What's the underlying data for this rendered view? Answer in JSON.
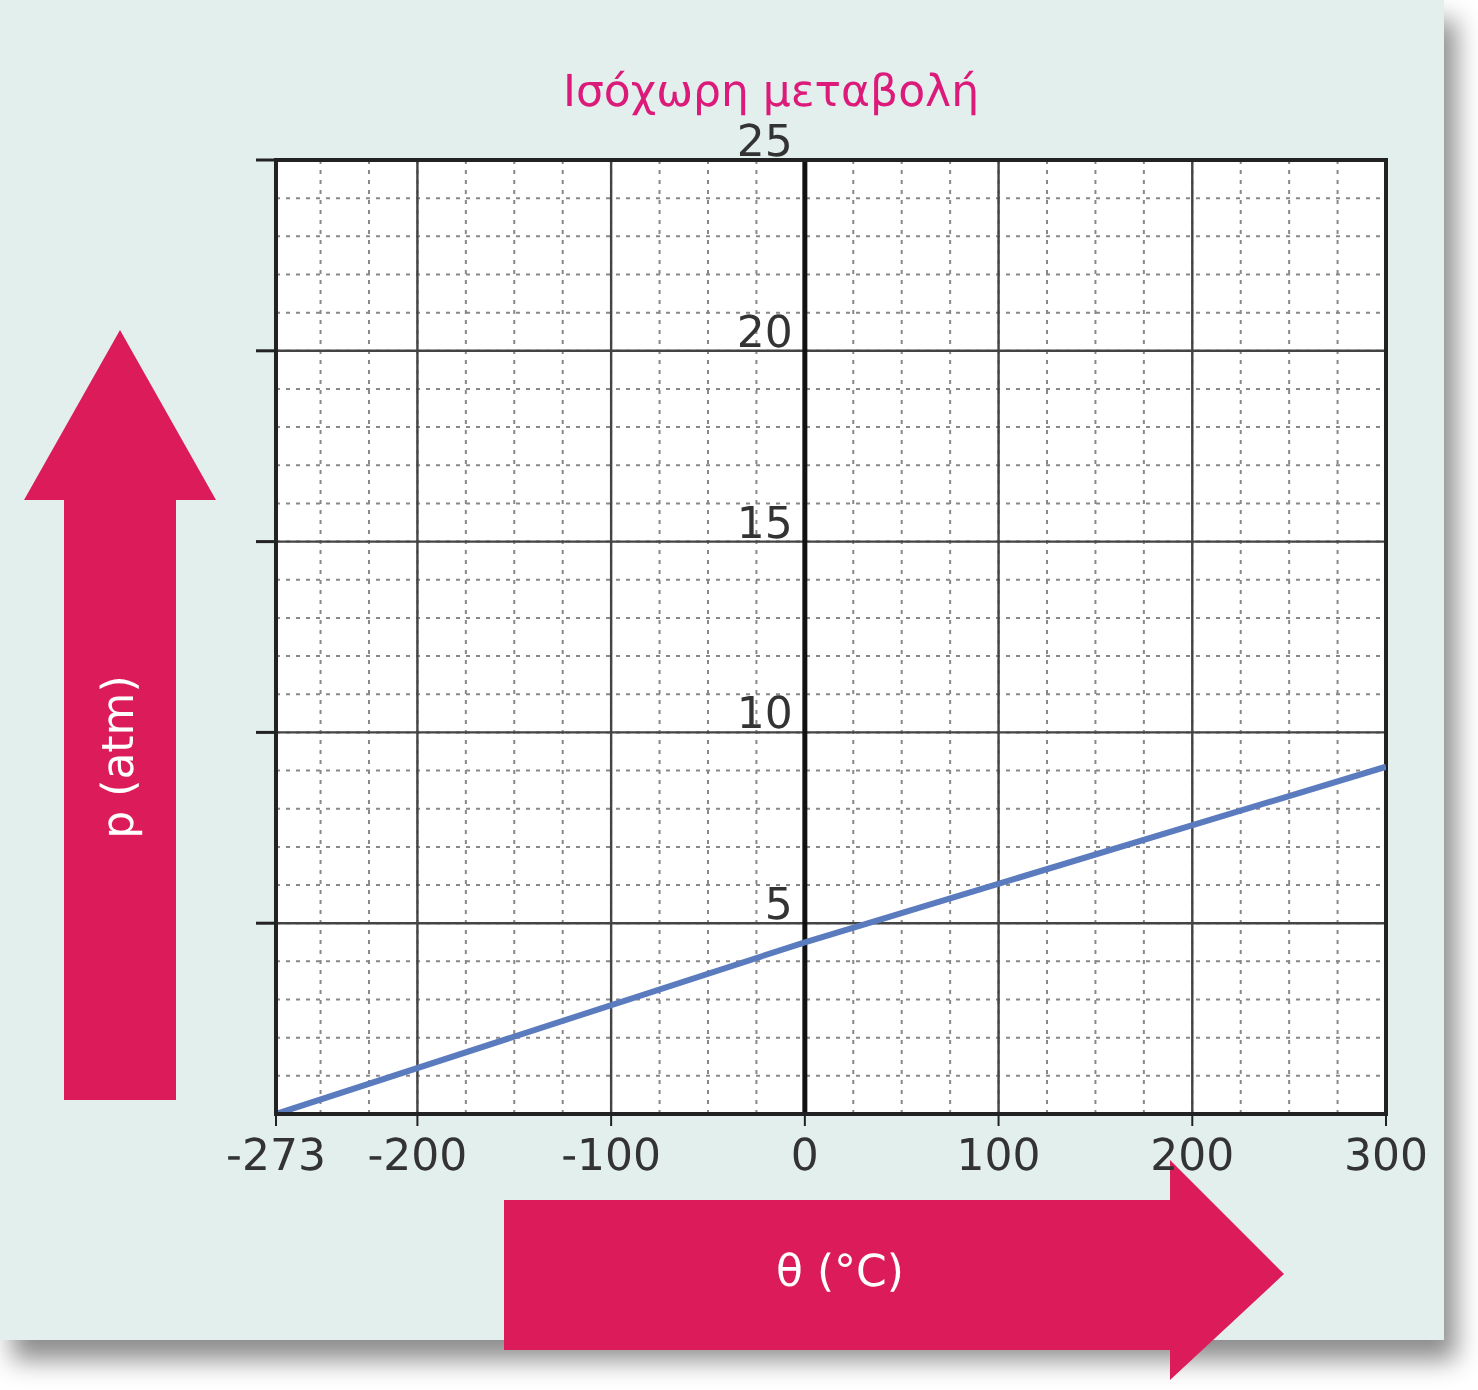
{
  "chart_data": {
    "type": "line",
    "title": "Ισόχωρη μεταβολή",
    "xlabel": "θ (°C)",
    "ylabel": "p (atm)",
    "x": [
      -273,
      0,
      300
    ],
    "series": [
      {
        "color": "#5b7bbf",
        "values": [
          0,
          4.5,
          9.1
        ]
      }
    ],
    "xlim": [
      -273,
      300
    ],
    "xticks": [
      -273,
      -200,
      -100,
      0,
      100,
      200,
      300
    ],
    "ylim": [
      0,
      25
    ],
    "yticks": [
      5,
      10,
      15,
      20,
      25
    ],
    "grid": true,
    "marker": "none",
    "line_style": "solid"
  }
}
